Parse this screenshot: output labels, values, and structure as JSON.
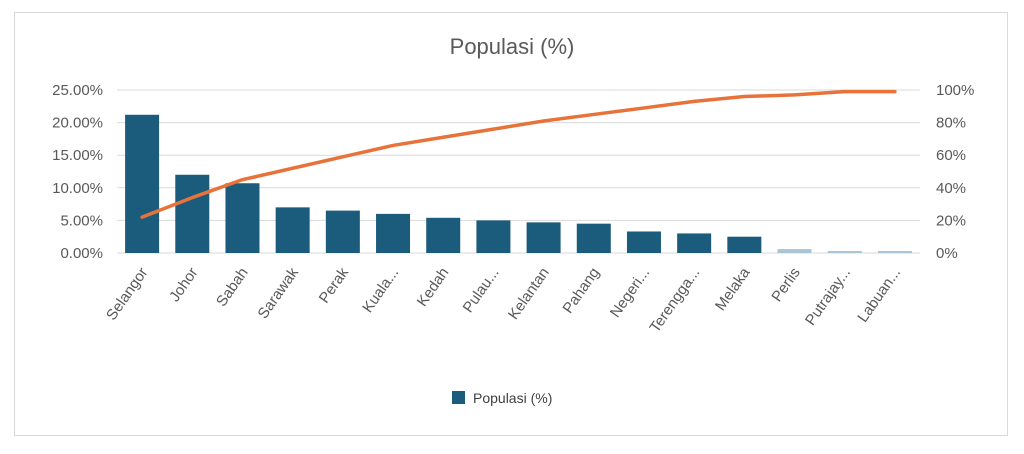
{
  "chart_data": {
    "type": "bar",
    "title": "Populasi (%)",
    "categories": [
      "Selangor",
      "Johor",
      "Sabah",
      "Sarawak",
      "Perak",
      "Kuala...",
      "Kedah",
      "Pulau...",
      "Kelantan",
      "Pahang",
      "Negeri...",
      "Terengga...",
      "Melaka",
      "Perlis",
      "Putrajay...",
      "Labuan..."
    ],
    "series": [
      {
        "name": "Populasi (%)",
        "type": "bar",
        "axis": "left",
        "values": [
          21.2,
          12.0,
          10.7,
          7.0,
          6.5,
          6.0,
          5.4,
          5.0,
          4.7,
          4.5,
          3.3,
          3.0,
          2.5,
          0.6,
          0.3,
          0.3
        ]
      },
      {
        "type": "line",
        "axis": "right",
        "values": [
          22,
          34,
          45,
          52,
          59,
          66,
          71,
          76,
          81,
          85,
          89,
          93,
          96,
          97,
          99,
          99
        ]
      }
    ],
    "left_axis": {
      "ticks": [
        "0.00%",
        "5.00%",
        "10.00%",
        "15.00%",
        "20.00%",
        "25.00%"
      ],
      "ylim": [
        0,
        25
      ]
    },
    "right_axis": {
      "ticks": [
        "0%",
        "20%",
        "40%",
        "60%",
        "80%",
        "100%"
      ],
      "ylim": [
        0,
        100
      ]
    },
    "grid": true,
    "legend": {
      "position": "bottom",
      "entries": [
        "Populasi (%)"
      ]
    },
    "colors": {
      "bar": "#1b5b7c",
      "line": "#e8733a",
      "faded_bar": "#a9c4d4",
      "grid": "#d9d9d9",
      "text": "#595959"
    }
  }
}
